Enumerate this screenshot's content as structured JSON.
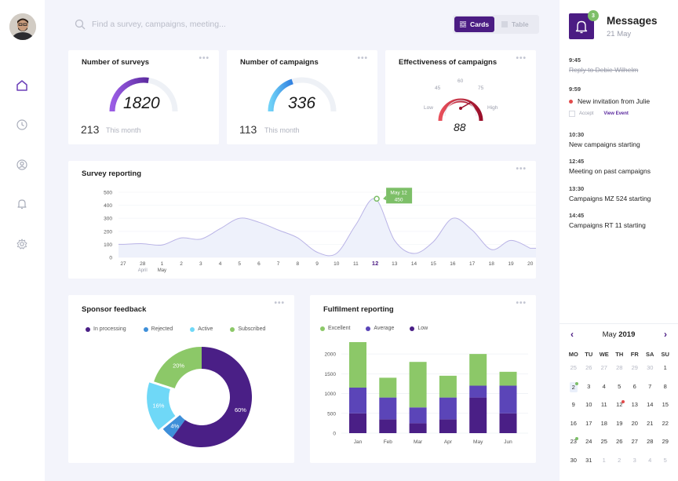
{
  "search": {
    "placeholder": "Find a survey, campaigns, meeting..."
  },
  "view_toggle": {
    "cards": "Cards",
    "table": "Table"
  },
  "stats": [
    {
      "title": "Number of surveys",
      "value": "1820",
      "month_value": "213",
      "month_label": "This month",
      "progress": 0.55,
      "color_from": "#9b5de5",
      "color_to": "#5b2a9e"
    },
    {
      "title": "Number of campaigns",
      "value": "336",
      "month_value": "113",
      "month_label": "This month",
      "progress": 0.4,
      "color_from": "#6fd1f7",
      "color_to": "#2f7fe0"
    }
  ],
  "effectiveness": {
    "title": "Effectiveness of campaigns",
    "value": "88",
    "ticks": {
      "t45": "45",
      "t60": "60",
      "t75": "75"
    },
    "low": "Low",
    "high": "High"
  },
  "survey_reporting": {
    "title": "Survey reporting",
    "tooltip_date": "May 12",
    "tooltip_value": "450"
  },
  "sponsor_feedback": {
    "title": "Sponsor feedback"
  },
  "fulfilment": {
    "title": "Fulfilment reporting"
  },
  "chart_data": [
    {
      "type": "area",
      "title": "Survey reporting",
      "x": [
        "27",
        "28",
        "1",
        "2",
        "3",
        "4",
        "5",
        "6",
        "7",
        "8",
        "9",
        "10",
        "11",
        "12",
        "13",
        "14",
        "15",
        "16",
        "17",
        "18",
        "19",
        "20"
      ],
      "x_sublabels": {
        "28": "April",
        "1": "May"
      },
      "highlight": "12",
      "values": [
        100,
        105,
        95,
        150,
        140,
        220,
        300,
        270,
        210,
        150,
        40,
        30,
        250,
        450,
        130,
        30,
        120,
        300,
        210,
        60,
        130,
        70
      ],
      "ylim": [
        0,
        500
      ],
      "yticks": [
        0,
        100,
        200,
        300,
        400,
        500
      ],
      "color": "#7a6cd8",
      "fill": "#eef1fb"
    },
    {
      "type": "pie",
      "title": "Sponsor feedback",
      "legend": [
        "In processing",
        "Rejected",
        "Active",
        "Subscribed"
      ],
      "labels": [
        "60%",
        "4%",
        "16%",
        "20%"
      ],
      "values": [
        60,
        4,
        16,
        20
      ],
      "colors": [
        "#4a1f86",
        "#3e8fd9",
        "#6fd8f7",
        "#8cc868"
      ],
      "legend_colors": [
        "#4a1f86",
        "#3e8fd9",
        "#6fd8f7",
        "#8cc868"
      ]
    },
    {
      "type": "bar",
      "title": "Fulfilment reporting",
      "categories": [
        "Jan",
        "Feb",
        "Mar",
        "Apr",
        "May",
        "Jun"
      ],
      "series": [
        {
          "name": "Low",
          "values": [
            500,
            350,
            250,
            350,
            900,
            500
          ],
          "color": "#4a1f86"
        },
        {
          "name": "Average",
          "values": [
            650,
            550,
            400,
            550,
            300,
            700
          ],
          "color": "#5b45b8"
        },
        {
          "name": "Excellent",
          "values": [
            1150,
            500,
            1150,
            550,
            800,
            350
          ],
          "color": "#8cc868"
        }
      ],
      "legend_order": [
        "Excellent",
        "Average",
        "Low"
      ],
      "ylim": [
        0,
        2300
      ],
      "yticks": [
        0,
        500,
        1000,
        1500,
        2000
      ]
    }
  ],
  "messages": {
    "title": "Messages",
    "date": "21 May",
    "badge": "3",
    "feed": [
      {
        "time": "9:45",
        "text": "Reply to Debie Wilhelm",
        "strike": true
      },
      {
        "time": "9:59",
        "text": "New invitation from Julie",
        "accept": "Accept",
        "view": "View Event"
      },
      {
        "time": "10:30",
        "text": "New campaigns starting"
      },
      {
        "time": "12:45",
        "text": "Meeting on past campaigns"
      },
      {
        "time": "13:30",
        "text": "Campaigns MZ 524 starting"
      },
      {
        "time": "14:45",
        "text": "Campaigns RT 11 starting"
      }
    ]
  },
  "calendar": {
    "month": "May",
    "year": "2019",
    "weekdays": [
      "MO",
      "TU",
      "WE",
      "TH",
      "FR",
      "SA",
      "SU"
    ],
    "days": [
      {
        "d": "25",
        "m": true
      },
      {
        "d": "26",
        "m": true
      },
      {
        "d": "27",
        "m": true
      },
      {
        "d": "28",
        "m": true
      },
      {
        "d": "29",
        "m": true
      },
      {
        "d": "30",
        "m": true
      },
      {
        "d": "1"
      },
      {
        "d": "2",
        "hl": true,
        "dot": "#7dbf68"
      },
      {
        "d": "3"
      },
      {
        "d": "4"
      },
      {
        "d": "5"
      },
      {
        "d": "6"
      },
      {
        "d": "7"
      },
      {
        "d": "8"
      },
      {
        "d": "9"
      },
      {
        "d": "10"
      },
      {
        "d": "11"
      },
      {
        "d": "12",
        "dot": "#e24b4b"
      },
      {
        "d": "13"
      },
      {
        "d": "14"
      },
      {
        "d": "15"
      },
      {
        "d": "16"
      },
      {
        "d": "17"
      },
      {
        "d": "18"
      },
      {
        "d": "19"
      },
      {
        "d": "20"
      },
      {
        "d": "21"
      },
      {
        "d": "22"
      },
      {
        "d": "23",
        "dot": "#7dbf68"
      },
      {
        "d": "24"
      },
      {
        "d": "25"
      },
      {
        "d": "26"
      },
      {
        "d": "27"
      },
      {
        "d": "28"
      },
      {
        "d": "29"
      },
      {
        "d": "30"
      },
      {
        "d": "31"
      },
      {
        "d": "1",
        "m": true
      },
      {
        "d": "2",
        "m": true
      },
      {
        "d": "3",
        "m": true
      },
      {
        "d": "4",
        "m": true
      },
      {
        "d": "5",
        "m": true
      }
    ]
  }
}
